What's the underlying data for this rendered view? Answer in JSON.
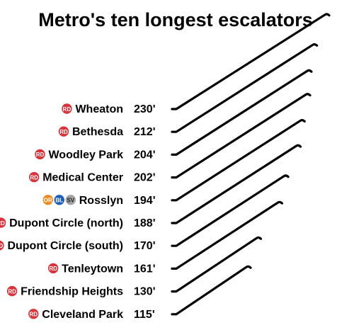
{
  "chart_data": {
    "type": "bar",
    "title": "Metro's ten longest escalators",
    "unit": "feet",
    "line_colors": {
      "RD": "#d8343c",
      "OR": "#e88c1e",
      "BL": "#1e5fb4",
      "SV": "#a2a4a1"
    },
    "rows": [
      {
        "station": "Wheaton",
        "value": 230,
        "label": "230'",
        "lines": [
          "RD"
        ]
      },
      {
        "station": "Bethesda",
        "value": 212,
        "label": "212'",
        "lines": [
          "RD"
        ]
      },
      {
        "station": "Woodley Park",
        "value": 204,
        "label": "204'",
        "lines": [
          "RD"
        ]
      },
      {
        "station": "Medical Center",
        "value": 202,
        "label": "202'",
        "lines": [
          "RD"
        ]
      },
      {
        "station": "Rosslyn",
        "value": 194,
        "label": "194'",
        "lines": [
          "OR",
          "BL",
          "SV"
        ]
      },
      {
        "station": "Dupont Circle (north)",
        "value": 188,
        "label": "188'",
        "lines": [
          "RD"
        ]
      },
      {
        "station": "Dupont Circle (south)",
        "value": 170,
        "label": "170'",
        "lines": [
          "RD"
        ]
      },
      {
        "station": "Tenleytown",
        "value": 161,
        "label": "161'",
        "lines": [
          "RD"
        ]
      },
      {
        "station": "Friendship Heights",
        "value": 130,
        "label": "130'",
        "lines": [
          "RD"
        ]
      },
      {
        "station": "Cleveland Park",
        "value": 115,
        "label": "115'",
        "lines": [
          "RD"
        ]
      }
    ]
  }
}
